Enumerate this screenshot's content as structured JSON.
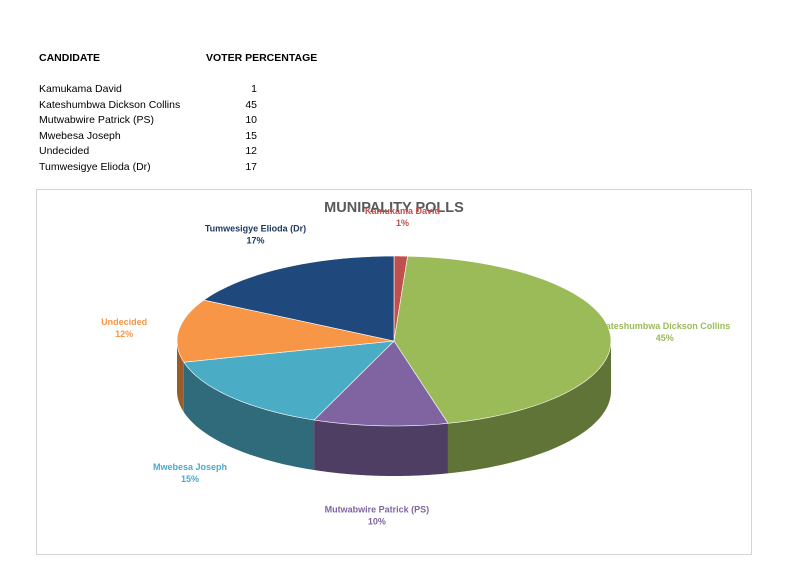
{
  "table": {
    "header_candidate": "CANDIDATE",
    "header_percentage": "VOTER PERCENTAGE",
    "rows": [
      {
        "candidate": "Kamukama David",
        "value": "1"
      },
      {
        "candidate": "Kateshumbwa Dickson Collins",
        "value": "45"
      },
      {
        "candidate": "Mutwabwire Patrick (PS)",
        "value": "10"
      },
      {
        "candidate": "Mwebesa Joseph",
        "value": "15"
      },
      {
        "candidate": "Undecided",
        "value": "12"
      },
      {
        "candidate": "Tumwesigye Elioda (Dr)",
        "value": "17"
      }
    ]
  },
  "chart_data": {
    "type": "pie",
    "title": "MUNIPALITY POLLS",
    "style": "3d",
    "data_labels": "category-and-percent",
    "legend": "none",
    "slices": [
      {
        "name": "Kamukama David",
        "value": 1,
        "percent_label": "1%",
        "color": "#c0504d"
      },
      {
        "name": "Kateshumbwa Dickson Collins",
        "value": 45,
        "percent_label": "45%",
        "color": "#9bbb59"
      },
      {
        "name": "Mutwabwire Patrick (PS)",
        "value": 10,
        "percent_label": "10%",
        "color": "#8064a2"
      },
      {
        "name": "Mwebesa Joseph",
        "value": 15,
        "percent_label": "15%",
        "color": "#4bacc6"
      },
      {
        "name": "Undecided",
        "value": 12,
        "percent_label": "12%",
        "color": "#f79646"
      },
      {
        "name": "Tumwesigye Elioda (Dr)",
        "value": 17,
        "percent_label": "17%",
        "color": "#1f497d"
      }
    ]
  }
}
